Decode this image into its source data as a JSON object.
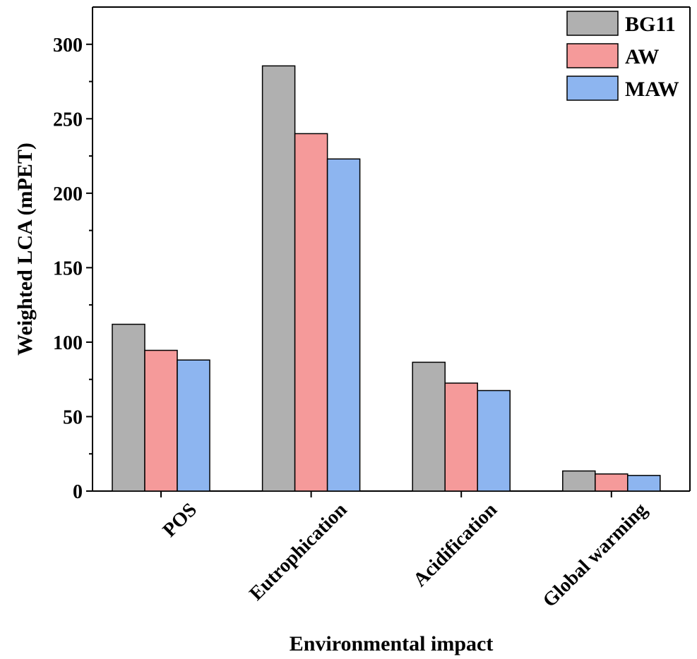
{
  "chart_data": {
    "type": "bar",
    "xlabel": "Environmental impact",
    "ylabel": "Weighted LCA (mPET)",
    "ylim": [
      0,
      325
    ],
    "yticks": [
      0,
      50,
      100,
      150,
      200,
      250,
      300
    ],
    "categories": [
      "POS",
      "Eutrophication",
      "Acidification",
      "Global warming"
    ],
    "series": [
      {
        "name": "BG11",
        "color": "#b0b0b0",
        "values": [
          112,
          285.5,
          86.5,
          13.5
        ]
      },
      {
        "name": "AW",
        "color": "#f59a9a",
        "values": [
          94.5,
          240,
          72.5,
          11.5
        ]
      },
      {
        "name": "MAW",
        "color": "#8db5f0",
        "values": [
          88,
          223,
          67.5,
          10.5
        ]
      }
    ],
    "legend_position": "top-right",
    "grid": false
  }
}
